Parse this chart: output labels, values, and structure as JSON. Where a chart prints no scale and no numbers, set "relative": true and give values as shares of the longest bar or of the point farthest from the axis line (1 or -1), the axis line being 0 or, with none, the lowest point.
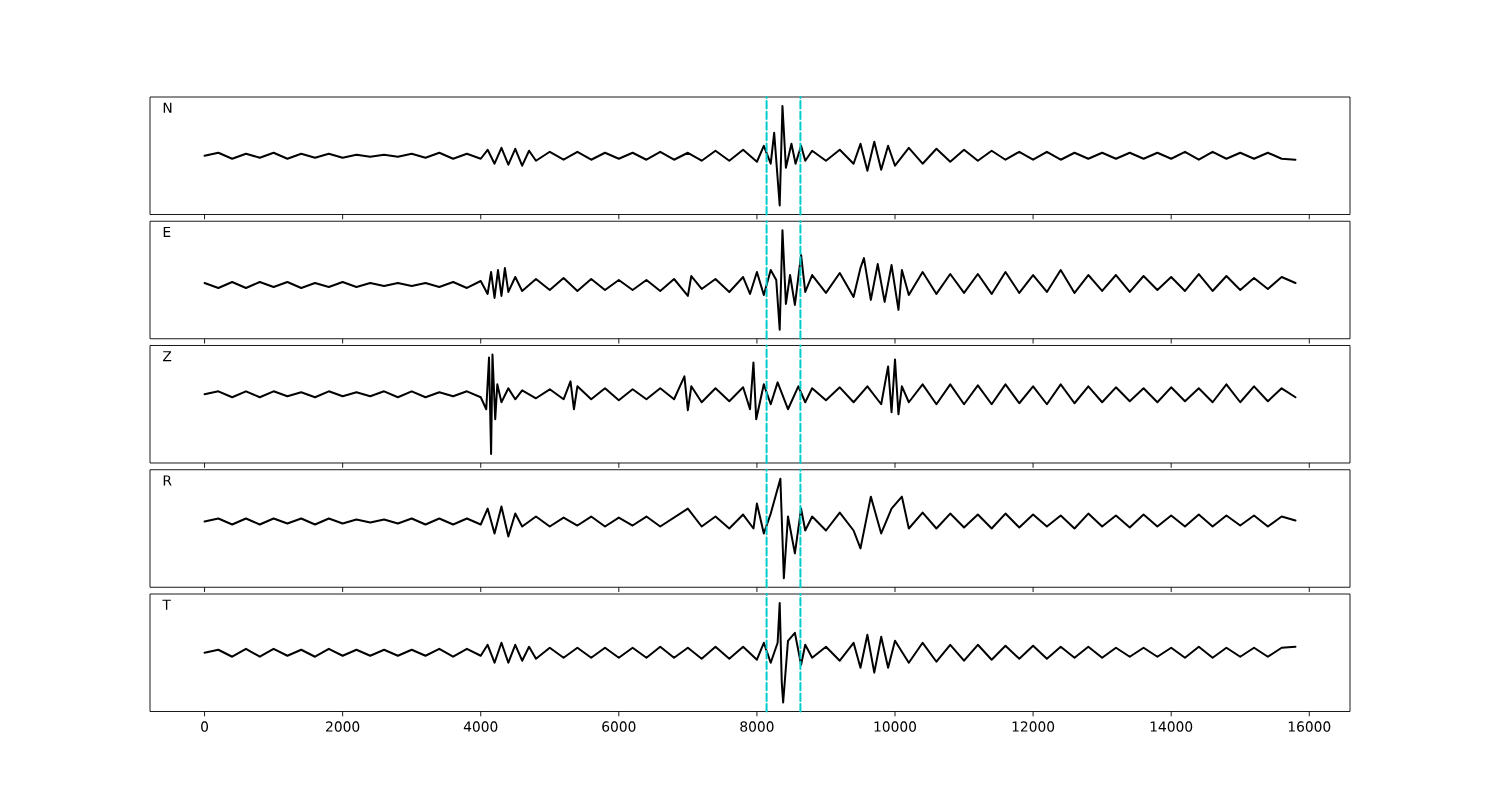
{
  "chart_data": [
    {
      "type": "line",
      "title": "N",
      "relative": true,
      "xlim": [
        -790,
        16590
      ],
      "xticks": [
        0,
        2000,
        4000,
        6000,
        8000,
        10000,
        12000,
        14000,
        16000
      ],
      "tick_labels": false,
      "ref_lines": [
        {
          "axis": "x",
          "value": 8140,
          "color": "#00cccc",
          "line_style": "dashed"
        },
        {
          "axis": "x",
          "value": 8630,
          "color": "#00cccc",
          "line_style": "dashed"
        }
      ],
      "series": [
        {
          "color": "#000000",
          "x": [
            0,
            200,
            400,
            600,
            800,
            1000,
            1200,
            1400,
            1600,
            1800,
            2000,
            2200,
            2400,
            2600,
            2800,
            3000,
            3200,
            3400,
            3600,
            3800,
            4000,
            4100,
            4200,
            4300,
            4400,
            4500,
            4600,
            4700,
            4800,
            5000,
            5200,
            5400,
            5600,
            5800,
            6000,
            6200,
            6400,
            6600,
            6800,
            7000,
            7200,
            7400,
            7600,
            7800,
            8000,
            8100,
            8200,
            8250,
            8330,
            8370,
            8420,
            8500,
            8560,
            8640,
            8700,
            8800,
            9000,
            9200,
            9400,
            9500,
            9600,
            9700,
            9800,
            9900,
            10000,
            10200,
            10400,
            10600,
            10800,
            11000,
            11200,
            11400,
            11600,
            11800,
            12000,
            12200,
            12400,
            12600,
            12800,
            13000,
            13200,
            13400,
            13600,
            13800,
            14000,
            14200,
            14400,
            14600,
            14800,
            15000,
            15200,
            15400,
            15600,
            15800
          ],
          "values": [
            0.5,
            0.53,
            0.47,
            0.52,
            0.48,
            0.53,
            0.47,
            0.52,
            0.48,
            0.52,
            0.48,
            0.51,
            0.49,
            0.51,
            0.49,
            0.52,
            0.48,
            0.53,
            0.47,
            0.52,
            0.47,
            0.56,
            0.42,
            0.58,
            0.41,
            0.57,
            0.4,
            0.55,
            0.45,
            0.54,
            0.46,
            0.54,
            0.46,
            0.53,
            0.47,
            0.53,
            0.46,
            0.54,
            0.46,
            0.53,
            0.45,
            0.55,
            0.45,
            0.56,
            0.44,
            0.6,
            0.42,
            0.73,
            0.0,
            1.0,
            0.38,
            0.62,
            0.42,
            0.6,
            0.45,
            0.55,
            0.45,
            0.56,
            0.42,
            0.62,
            0.35,
            0.64,
            0.36,
            0.6,
            0.4,
            0.58,
            0.42,
            0.57,
            0.44,
            0.56,
            0.45,
            0.55,
            0.46,
            0.54,
            0.46,
            0.54,
            0.46,
            0.53,
            0.47,
            0.53,
            0.47,
            0.53,
            0.47,
            0.53,
            0.47,
            0.54,
            0.46,
            0.54,
            0.47,
            0.53,
            0.47,
            0.53,
            0.47,
            0.46
          ]
        }
      ]
    },
    {
      "type": "line",
      "title": "E",
      "relative": true,
      "xlim": [
        -790,
        16590
      ],
      "xticks": [
        0,
        2000,
        4000,
        6000,
        8000,
        10000,
        12000,
        14000,
        16000
      ],
      "tick_labels": false,
      "ref_lines": [
        {
          "axis": "x",
          "value": 8140,
          "color": "#00cccc",
          "line_style": "dashed"
        },
        {
          "axis": "x",
          "value": 8630,
          "color": "#00cccc",
          "line_style": "dashed"
        }
      ],
      "series": [
        {
          "color": "#000000",
          "x": [
            0,
            200,
            400,
            600,
            800,
            1000,
            1200,
            1400,
            1600,
            1800,
            2000,
            2200,
            2400,
            2600,
            2800,
            3000,
            3200,
            3400,
            3600,
            3800,
            4000,
            4100,
            4150,
            4200,
            4250,
            4300,
            4350,
            4400,
            4500,
            4600,
            4800,
            5000,
            5200,
            5400,
            5600,
            5800,
            6000,
            6200,
            6400,
            6600,
            6800,
            7000,
            7050,
            7200,
            7400,
            7600,
            7800,
            7900,
            8000,
            8100,
            8200,
            8280,
            8330,
            8370,
            8420,
            8480,
            8550,
            8640,
            8700,
            8800,
            9000,
            9200,
            9400,
            9500,
            9550,
            9650,
            9750,
            9850,
            9950,
            10050,
            10100,
            10200,
            10400,
            10600,
            10800,
            11000,
            11200,
            11400,
            11600,
            11800,
            12000,
            12200,
            12400,
            12600,
            12800,
            13000,
            13200,
            13400,
            13600,
            13800,
            14000,
            14200,
            14400,
            14600,
            14800,
            15000,
            15200,
            15400,
            15600,
            15800
          ],
          "values": [
            0.47,
            0.42,
            0.48,
            0.42,
            0.48,
            0.43,
            0.48,
            0.42,
            0.47,
            0.43,
            0.48,
            0.43,
            0.47,
            0.44,
            0.47,
            0.44,
            0.47,
            0.43,
            0.48,
            0.42,
            0.49,
            0.36,
            0.58,
            0.32,
            0.6,
            0.34,
            0.62,
            0.38,
            0.53,
            0.39,
            0.51,
            0.4,
            0.52,
            0.39,
            0.51,
            0.4,
            0.5,
            0.4,
            0.5,
            0.39,
            0.51,
            0.34,
            0.54,
            0.41,
            0.51,
            0.38,
            0.53,
            0.36,
            0.58,
            0.35,
            0.6,
            0.5,
            0.0,
            1.0,
            0.26,
            0.55,
            0.25,
            0.75,
            0.38,
            0.55,
            0.37,
            0.57,
            0.33,
            0.62,
            0.72,
            0.3,
            0.66,
            0.28,
            0.65,
            0.2,
            0.6,
            0.35,
            0.58,
            0.36,
            0.56,
            0.37,
            0.56,
            0.36,
            0.58,
            0.37,
            0.55,
            0.38,
            0.6,
            0.37,
            0.55,
            0.39,
            0.55,
            0.38,
            0.54,
            0.4,
            0.53,
            0.39,
            0.56,
            0.39,
            0.54,
            0.4,
            0.52,
            0.41,
            0.53,
            0.47
          ]
        }
      ]
    },
    {
      "type": "line",
      "title": "Z",
      "relative": true,
      "xlim": [
        -790,
        16590
      ],
      "xticks": [
        0,
        2000,
        4000,
        6000,
        8000,
        10000,
        12000,
        14000,
        16000
      ],
      "tick_labels": false,
      "ref_lines": [
        {
          "axis": "x",
          "value": 8140,
          "color": "#00cccc",
          "line_style": "dashed"
        },
        {
          "axis": "x",
          "value": 8630,
          "color": "#00cccc",
          "line_style": "dashed"
        }
      ],
      "series": [
        {
          "color": "#000000",
          "x": [
            0,
            200,
            400,
            600,
            800,
            1000,
            1200,
            1400,
            1600,
            1800,
            2000,
            2200,
            2400,
            2600,
            2800,
            3000,
            3200,
            3400,
            3600,
            3800,
            4000,
            4080,
            4120,
            4150,
            4170,
            4210,
            4240,
            4300,
            4400,
            4500,
            4600,
            4800,
            5000,
            5200,
            5300,
            5350,
            5400,
            5600,
            5800,
            6000,
            6200,
            6400,
            6600,
            6800,
            6950,
            7000,
            7050,
            7200,
            7400,
            7600,
            7800,
            7900,
            7950,
            7990,
            8100,
            8200,
            8300,
            8450,
            8600,
            8700,
            8800,
            9000,
            9200,
            9400,
            9600,
            9800,
            9900,
            9950,
            10000,
            10050,
            10100,
            10200,
            10400,
            10600,
            10800,
            11000,
            11200,
            11400,
            11600,
            11800,
            12000,
            12200,
            12400,
            12600,
            12800,
            13000,
            13200,
            13400,
            13600,
            13800,
            14000,
            14200,
            14400,
            14600,
            14800,
            15000,
            15200,
            15400,
            15600,
            15800
          ],
          "values": [
            0.6,
            0.63,
            0.57,
            0.63,
            0.57,
            0.63,
            0.58,
            0.62,
            0.57,
            0.63,
            0.58,
            0.62,
            0.58,
            0.63,
            0.57,
            0.63,
            0.57,
            0.62,
            0.58,
            0.63,
            0.57,
            0.45,
            0.97,
            0.0,
            1.0,
            0.35,
            0.7,
            0.52,
            0.66,
            0.55,
            0.64,
            0.56,
            0.65,
            0.55,
            0.73,
            0.45,
            0.68,
            0.55,
            0.66,
            0.54,
            0.65,
            0.55,
            0.66,
            0.55,
            0.78,
            0.44,
            0.68,
            0.52,
            0.66,
            0.53,
            0.67,
            0.45,
            0.92,
            0.35,
            0.7,
            0.5,
            0.72,
            0.45,
            0.68,
            0.52,
            0.66,
            0.54,
            0.67,
            0.52,
            0.68,
            0.5,
            0.88,
            0.42,
            0.95,
            0.4,
            0.68,
            0.52,
            0.7,
            0.5,
            0.7,
            0.5,
            0.69,
            0.5,
            0.7,
            0.51,
            0.68,
            0.5,
            0.7,
            0.51,
            0.68,
            0.52,
            0.67,
            0.53,
            0.66,
            0.52,
            0.67,
            0.53,
            0.66,
            0.52,
            0.7,
            0.52,
            0.68,
            0.53,
            0.66,
            0.57
          ]
        }
      ]
    },
    {
      "type": "line",
      "title": "R",
      "relative": true,
      "xlim": [
        -790,
        16590
      ],
      "xticks": [
        0,
        2000,
        4000,
        6000,
        8000,
        10000,
        12000,
        14000,
        16000
      ],
      "tick_labels": false,
      "ref_lines": [
        {
          "axis": "x",
          "value": 8140,
          "color": "#00cccc",
          "line_style": "dashed"
        },
        {
          "axis": "x",
          "value": 8630,
          "color": "#00cccc",
          "line_style": "dashed"
        }
      ],
      "series": [
        {
          "color": "#000000",
          "x": [
            0,
            200,
            400,
            600,
            800,
            1000,
            1200,
            1400,
            1600,
            1800,
            2000,
            2200,
            2400,
            2600,
            2800,
            3000,
            3200,
            3400,
            3600,
            3800,
            4000,
            4100,
            4200,
            4300,
            4400,
            4500,
            4600,
            4800,
            5000,
            5200,
            5400,
            5600,
            5800,
            6000,
            6200,
            6400,
            6600,
            6800,
            7000,
            7200,
            7400,
            7600,
            7800,
            7950,
            8000,
            8100,
            8200,
            8340,
            8390,
            8450,
            8550,
            8640,
            8700,
            8800,
            9000,
            9200,
            9400,
            9500,
            9650,
            9800,
            9950,
            10100,
            10200,
            10400,
            10600,
            10800,
            11000,
            11200,
            11400,
            11600,
            11800,
            12000,
            12200,
            12400,
            12600,
            12800,
            13000,
            13200,
            13400,
            13600,
            13800,
            14000,
            14200,
            14400,
            14600,
            14800,
            15000,
            15200,
            15400,
            15600,
            15800
          ],
          "values": [
            0.57,
            0.6,
            0.54,
            0.6,
            0.54,
            0.6,
            0.55,
            0.6,
            0.54,
            0.6,
            0.55,
            0.59,
            0.56,
            0.59,
            0.55,
            0.6,
            0.54,
            0.6,
            0.54,
            0.6,
            0.54,
            0.7,
            0.45,
            0.72,
            0.42,
            0.65,
            0.52,
            0.62,
            0.52,
            0.61,
            0.53,
            0.62,
            0.52,
            0.61,
            0.53,
            0.62,
            0.52,
            0.61,
            0.7,
            0.52,
            0.62,
            0.5,
            0.64,
            0.5,
            0.75,
            0.45,
            0.65,
            1.0,
            0.0,
            0.62,
            0.25,
            0.7,
            0.48,
            0.62,
            0.48,
            0.66,
            0.48,
            0.3,
            0.82,
            0.45,
            0.7,
            0.82,
            0.5,
            0.66,
            0.5,
            0.65,
            0.51,
            0.64,
            0.5,
            0.65,
            0.51,
            0.64,
            0.52,
            0.63,
            0.5,
            0.65,
            0.52,
            0.63,
            0.51,
            0.64,
            0.52,
            0.63,
            0.52,
            0.64,
            0.52,
            0.63,
            0.53,
            0.63,
            0.52,
            0.62,
            0.58
          ]
        }
      ]
    },
    {
      "type": "line",
      "title": "T",
      "relative": true,
      "xlim": [
        -790,
        16590
      ],
      "xticks": [
        0,
        2000,
        4000,
        6000,
        8000,
        10000,
        12000,
        14000,
        16000
      ],
      "tick_labels": "x",
      "ref_lines": [
        {
          "axis": "x",
          "value": 8140,
          "color": "#00cccc",
          "line_style": "dashed"
        },
        {
          "axis": "x",
          "value": 8630,
          "color": "#00cccc",
          "line_style": "dashed"
        }
      ],
      "series": [
        {
          "color": "#000000",
          "x": [
            0,
            200,
            400,
            600,
            800,
            1000,
            1200,
            1400,
            1600,
            1800,
            2000,
            2200,
            2400,
            2600,
            2800,
            3000,
            3200,
            3400,
            3600,
            3800,
            4000,
            4100,
            4200,
            4300,
            4400,
            4500,
            4600,
            4700,
            4800,
            5000,
            5200,
            5400,
            5600,
            5800,
            6000,
            6200,
            6400,
            6600,
            6800,
            7000,
            7200,
            7400,
            7600,
            7800,
            8000,
            8100,
            8200,
            8300,
            8330,
            8360,
            8380,
            8450,
            8550,
            8640,
            8700,
            8800,
            9000,
            9200,
            9400,
            9500,
            9600,
            9700,
            9800,
            9900,
            10000,
            10200,
            10400,
            10600,
            10800,
            11000,
            11200,
            11400,
            11600,
            11800,
            12000,
            12200,
            12400,
            12600,
            12800,
            13000,
            13200,
            13400,
            13600,
            13800,
            14000,
            14200,
            14400,
            14600,
            14800,
            15000,
            15200,
            15400,
            15600,
            15800
          ],
          "values": [
            0.5,
            0.53,
            0.46,
            0.54,
            0.46,
            0.54,
            0.47,
            0.53,
            0.46,
            0.54,
            0.47,
            0.53,
            0.47,
            0.53,
            0.47,
            0.53,
            0.47,
            0.54,
            0.46,
            0.54,
            0.47,
            0.58,
            0.4,
            0.6,
            0.4,
            0.58,
            0.42,
            0.56,
            0.44,
            0.55,
            0.45,
            0.55,
            0.45,
            0.55,
            0.45,
            0.55,
            0.45,
            0.56,
            0.45,
            0.55,
            0.44,
            0.56,
            0.44,
            0.56,
            0.43,
            0.6,
            0.4,
            0.6,
            1.0,
            0.2,
            0.0,
            0.62,
            0.7,
            0.38,
            0.58,
            0.45,
            0.56,
            0.42,
            0.6,
            0.35,
            0.68,
            0.3,
            0.66,
            0.35,
            0.62,
            0.4,
            0.6,
            0.41,
            0.58,
            0.42,
            0.58,
            0.43,
            0.57,
            0.44,
            0.57,
            0.44,
            0.56,
            0.45,
            0.56,
            0.45,
            0.55,
            0.46,
            0.55,
            0.46,
            0.55,
            0.45,
            0.56,
            0.45,
            0.55,
            0.46,
            0.55,
            0.46,
            0.55,
            0.56
          ]
        }
      ]
    }
  ]
}
